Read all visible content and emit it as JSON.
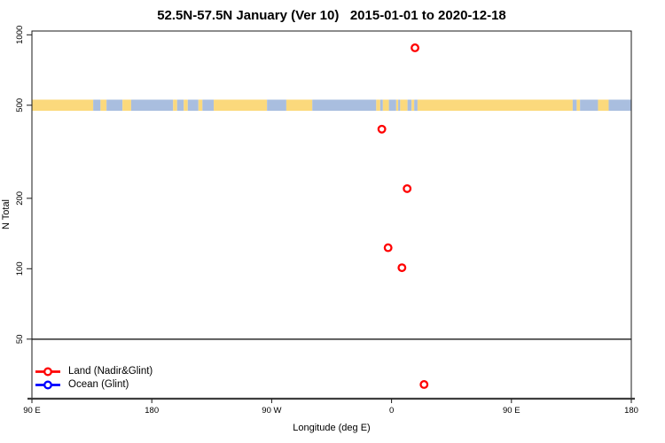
{
  "title": "52.5N-57.5N January (Ver 10)   2015-01-01 to 2020-12-18",
  "legend": {
    "items": [
      {
        "label": "Land (Nadir&Glint)",
        "color": "#ff0000"
      },
      {
        "label": "Ocean (Glint)",
        "color": "#0000ff"
      }
    ]
  },
  "chart_data": {
    "type": "scatter",
    "title": "52.5N-57.5N January (Ver 10)   2015-01-01 to 2020-12-18",
    "xlabel": "Longitude (deg E)",
    "ylabel": "N Total",
    "x_axis": {
      "range": [
        -270,
        180
      ],
      "ticks": [
        -270,
        -180,
        -90,
        0,
        90,
        180
      ],
      "tick_labels": [
        "90 E",
        "180",
        "90 W",
        "0",
        "90 E",
        "180"
      ]
    },
    "y_axis": {
      "scale": "log",
      "range": [
        28,
        1080
      ],
      "ticks": [
        50,
        100,
        200,
        500,
        1000
      ],
      "tick_labels": [
        "50",
        "100",
        "200",
        "500",
        "1000"
      ]
    },
    "hline_n": 50,
    "grid": false,
    "legend_position": "bottom-left",
    "series": [
      {
        "name": "Land (Nadir&Glint)",
        "color": "#ff0000",
        "marker": "open-circle",
        "points": [
          {
            "lon": 17.6,
            "n": 880
          },
          {
            "lon": -7.3,
            "n": 395
          },
          {
            "lon": 11.7,
            "n": 220
          },
          {
            "lon": -2.6,
            "n": 123
          },
          {
            "lon": 7.8,
            "n": 101
          },
          {
            "lon": 24.4,
            "n": 32
          }
        ]
      },
      {
        "name": "Ocean (Glint)",
        "color": "#0000ff",
        "marker": "open-circle",
        "points": []
      }
    ],
    "map_band": {
      "description": "land/ocean strip along 52.5N-57.5N plotted at N=500",
      "center_n": 500,
      "land_color": "#fbd97c",
      "ocean_color": "#a9bedf",
      "segments": [
        {
          "from": -270,
          "to": -224,
          "surface": "land"
        },
        {
          "from": -224,
          "to": -218.5,
          "surface": "ocean"
        },
        {
          "from": -218.5,
          "to": -214,
          "surface": "land"
        },
        {
          "from": -214,
          "to": -202,
          "surface": "ocean"
        },
        {
          "from": -202,
          "to": -195.5,
          "surface": "land"
        },
        {
          "from": -195.5,
          "to": -164,
          "surface": "ocean"
        },
        {
          "from": -164,
          "to": -161,
          "surface": "land"
        },
        {
          "from": -161,
          "to": -156,
          "surface": "ocean"
        },
        {
          "from": -156,
          "to": -153,
          "surface": "land"
        },
        {
          "from": -153,
          "to": -145,
          "surface": "ocean"
        },
        {
          "from": -145,
          "to": -142,
          "surface": "land"
        },
        {
          "from": -142,
          "to": -133.5,
          "surface": "ocean"
        },
        {
          "from": -133.5,
          "to": -93.5,
          "surface": "land"
        },
        {
          "from": -93.5,
          "to": -79,
          "surface": "ocean"
        },
        {
          "from": -79,
          "to": -59.5,
          "surface": "land"
        },
        {
          "from": -59.5,
          "to": -11.5,
          "surface": "ocean"
        },
        {
          "from": -11.5,
          "to": -8.5,
          "surface": "land"
        },
        {
          "from": -8.5,
          "to": -6.5,
          "surface": "ocean"
        },
        {
          "from": -6.5,
          "to": -2,
          "surface": "land"
        },
        {
          "from": -2,
          "to": 3.5,
          "surface": "ocean"
        },
        {
          "from": 3.5,
          "to": 5,
          "surface": "land"
        },
        {
          "from": 5,
          "to": 6.5,
          "surface": "ocean"
        },
        {
          "from": 6.5,
          "to": 12,
          "surface": "land"
        },
        {
          "from": 12,
          "to": 15,
          "surface": "ocean"
        },
        {
          "from": 15,
          "to": 17,
          "surface": "land"
        },
        {
          "from": 17,
          "to": 19.5,
          "surface": "ocean"
        },
        {
          "from": 19.5,
          "to": 136,
          "surface": "land"
        },
        {
          "from": 136,
          "to": 139,
          "surface": "ocean"
        },
        {
          "from": 139,
          "to": 141.5,
          "surface": "land"
        },
        {
          "from": 141.5,
          "to": 155,
          "surface": "ocean"
        },
        {
          "from": 155,
          "to": 163,
          "surface": "land"
        },
        {
          "from": 163,
          "to": 180,
          "surface": "ocean"
        }
      ]
    }
  }
}
